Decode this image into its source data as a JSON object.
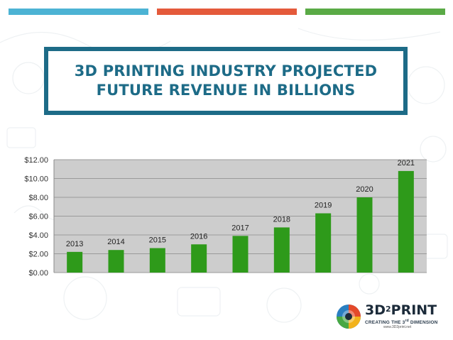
{
  "colors": {
    "stripe_blue": "#4cb3d4",
    "stripe_red": "#e45a3b",
    "stripe_green": "#5aaa46",
    "frame": "#1d6b87",
    "plot_bg": "#cdcdcd",
    "bar": "#2e9a1a"
  },
  "title": {
    "line1": "3D PRINTING INDUSTRY PROJECTED",
    "line2": "FUTURE REVENUE IN BILLIONS"
  },
  "chart_data": {
    "type": "bar",
    "categories": [
      "2013",
      "2014",
      "2015",
      "2016",
      "2017",
      "2018",
      "2019",
      "2020",
      "2021"
    ],
    "values": [
      2.2,
      2.4,
      2.6,
      3.0,
      3.9,
      4.8,
      6.3,
      8.0,
      10.8
    ],
    "yticks": [
      "$0.00",
      "$2.00",
      "$4.00",
      "$6.00",
      "$8.00",
      "$10.00",
      "$12.00"
    ],
    "ylim": [
      0,
      12
    ],
    "grid": true,
    "data_labels": "category above bar"
  },
  "logo": {
    "brand_main": "3D",
    "brand_sup": "2",
    "brand_end": "PRINT",
    "tagline_pre": "CREATING THE 3",
    "tagline_sup": "rd",
    "tagline_post": " DIMENSION",
    "website": "www.3D2print.net"
  }
}
